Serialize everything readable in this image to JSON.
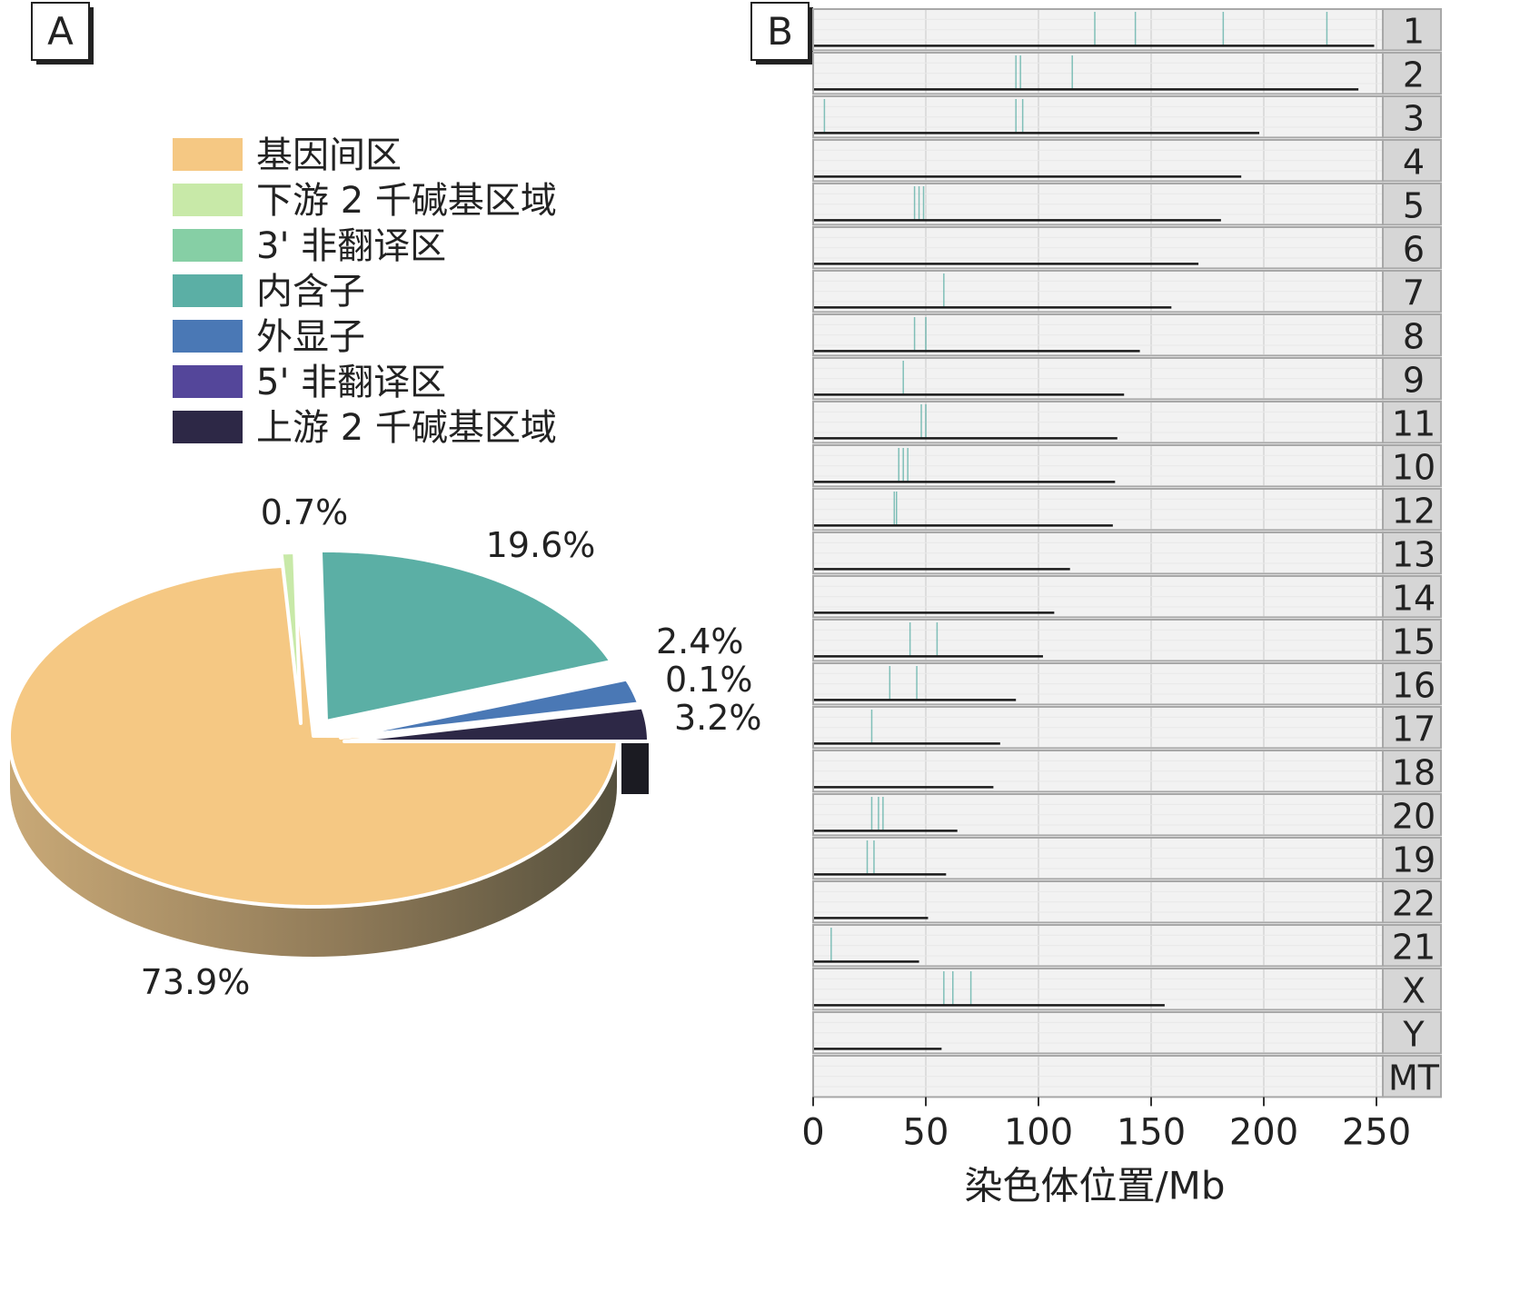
{
  "panels": {
    "a_label": "A",
    "b_label": "B"
  },
  "colors": {
    "intergenic": "#F5C883",
    "downstream": "#C8E9A8",
    "utr3": "#86CFA5",
    "intron": "#5BAFA5",
    "exon": "#4A78B5",
    "utr5": "#54469A",
    "upstream": "#2D2846",
    "strip_bg": "#D6D6D6",
    "panel_bg": "#F2F2F2",
    "grid": "#FFFFFF",
    "chrom_line": "#1A1A1A"
  },
  "chart_data": [
    {
      "type": "pie",
      "panel": "A",
      "legend": [
        {
          "key": "intergenic",
          "label": "基因间区"
        },
        {
          "key": "downstream",
          "label": "下游 2 千碱基区域"
        },
        {
          "key": "utr3",
          "label": "3' 非翻译区"
        },
        {
          "key": "intron",
          "label": "内含子"
        },
        {
          "key": "exon",
          "label": "外显子"
        },
        {
          "key": "utr5",
          "label": "5' 非翻译区"
        },
        {
          "key": "upstream",
          "label": "上游 2 千碱基区域"
        }
      ],
      "slices": [
        {
          "key": "intergenic",
          "value": 73.9,
          "label": "73.9%"
        },
        {
          "key": "downstream",
          "value": 0.7,
          "label": "0.7%"
        },
        {
          "key": "intron",
          "value": 19.6,
          "label": "19.6%"
        },
        {
          "key": "utr3",
          "value": 0.1,
          "label": "0.1%"
        },
        {
          "key": "exon",
          "value": 2.4,
          "label": "2.4%"
        },
        {
          "key": "upstream",
          "value": 3.2,
          "label": "3.2%"
        }
      ],
      "legend_placement": "top"
    },
    {
      "type": "bar",
      "panel": "B",
      "orientation": "horizontal",
      "xlabel": "染色体位置/Mb",
      "xlim": [
        0,
        260
      ],
      "xticks": [
        0,
        50,
        100,
        150,
        200,
        250
      ],
      "grid": true,
      "chromosomes": [
        {
          "name": "1",
          "length": 249
        },
        {
          "name": "2",
          "length": 242
        },
        {
          "name": "3",
          "length": 198
        },
        {
          "name": "4",
          "length": 190
        },
        {
          "name": "5",
          "length": 181
        },
        {
          "name": "6",
          "length": 171
        },
        {
          "name": "7",
          "length": 159
        },
        {
          "name": "8",
          "length": 145
        },
        {
          "name": "9",
          "length": 138
        },
        {
          "name": "11",
          "length": 135
        },
        {
          "name": "10",
          "length": 134
        },
        {
          "name": "12",
          "length": 133
        },
        {
          "name": "13",
          "length": 114
        },
        {
          "name": "14",
          "length": 107
        },
        {
          "name": "15",
          "length": 102
        },
        {
          "name": "16",
          "length": 90
        },
        {
          "name": "17",
          "length": 83
        },
        {
          "name": "18",
          "length": 80
        },
        {
          "name": "20",
          "length": 64
        },
        {
          "name": "19",
          "length": 59
        },
        {
          "name": "22",
          "length": 51
        },
        {
          "name": "21",
          "length": 47
        },
        {
          "name": "X",
          "length": 156
        },
        {
          "name": "Y",
          "length": 57
        },
        {
          "name": "MT",
          "length": 0
        }
      ],
      "markers": {
        "1": [
          125,
          143,
          182,
          228
        ],
        "2": [
          90,
          92,
          115
        ],
        "3": [
          5,
          90,
          93
        ],
        "5": [
          45,
          47,
          49
        ],
        "7": [
          58
        ],
        "8": [
          45,
          50
        ],
        "9": [
          40
        ],
        "11": [
          48,
          50
        ],
        "10": [
          38,
          40,
          42
        ],
        "12": [
          36,
          37
        ],
        "15": [
          43,
          55
        ],
        "16": [
          34,
          46
        ],
        "17": [
          26
        ],
        "20": [
          26,
          29,
          31
        ],
        "19": [
          24,
          27
        ],
        "21": [
          8
        ],
        "X": [
          58,
          62,
          70
        ]
      }
    }
  ]
}
